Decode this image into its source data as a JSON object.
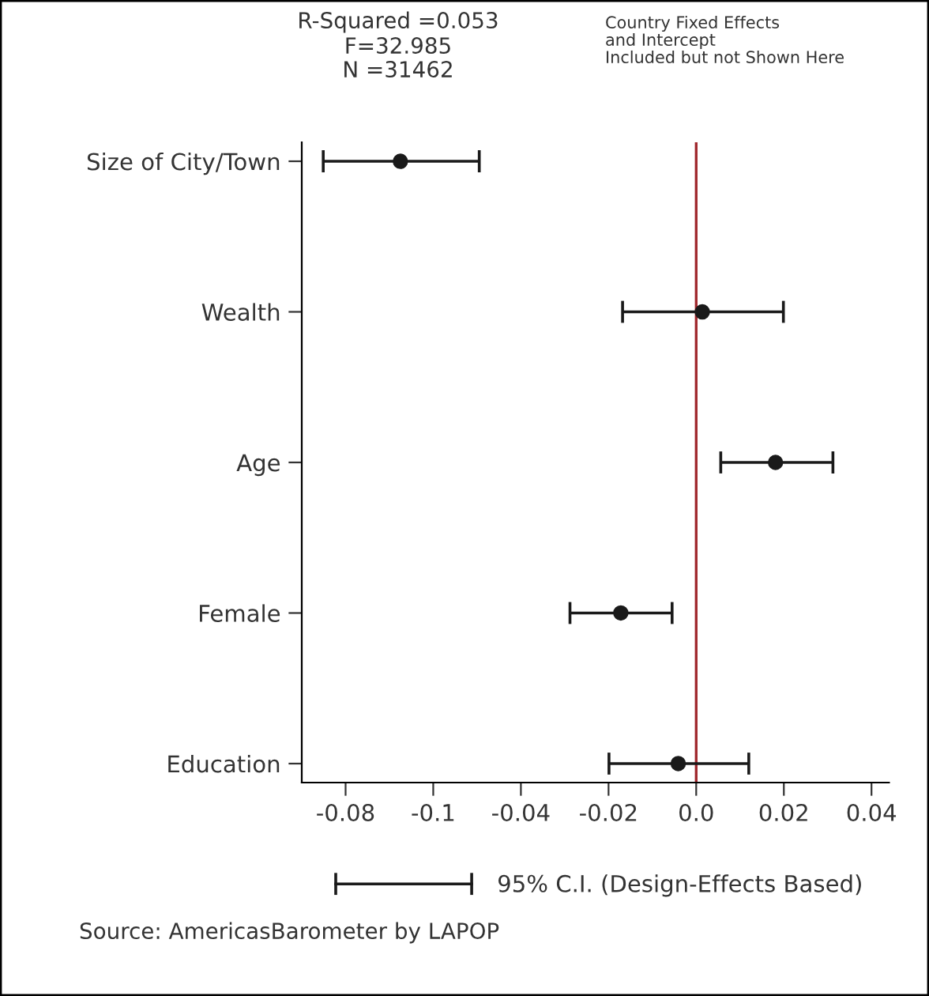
{
  "chart_data": {
    "type": "scatter",
    "orientation": "horizontal",
    "categories": [
      "Size of City/Town",
      "Wealth",
      "Age",
      "Female",
      "Education"
    ],
    "series": [
      {
        "name": "95% C.I. (Design-Effects Based)",
        "color": "#1a1a1a",
        "values": [
          -0.0675,
          0.0014,
          0.0181,
          -0.0172,
          -0.0041
        ],
        "errors": [
          [
            -0.0851,
            -0.0495
          ],
          [
            -0.0168,
            0.0199
          ],
          [
            0.0056,
            0.0312
          ],
          [
            -0.0288,
            -0.0055
          ],
          [
            -0.0199,
            0.012
          ]
        ]
      }
    ],
    "xlim": [
      -0.09,
      0.044
    ],
    "xticks": [
      -0.08,
      {
        "value": -0.06,
        "label": "-0.1"
      },
      -0.04,
      -0.02,
      {
        "value": 0,
        "label": "0.0"
      },
      0.02,
      0.04
    ],
    "ref_lines": [
      {
        "axis": "x",
        "value": 0,
        "color": "#a0282d"
      }
    ],
    "marker": "circle",
    "legend": "bottom",
    "grid": false,
    "annotations": [
      "R-Squared =0.053",
      "F=32.985",
      "N =31462",
      "Country Fixed Effects",
      "and Intercept",
      "Included but not Shown Here",
      "Source: AmericasBarometer by LAPOP"
    ]
  }
}
